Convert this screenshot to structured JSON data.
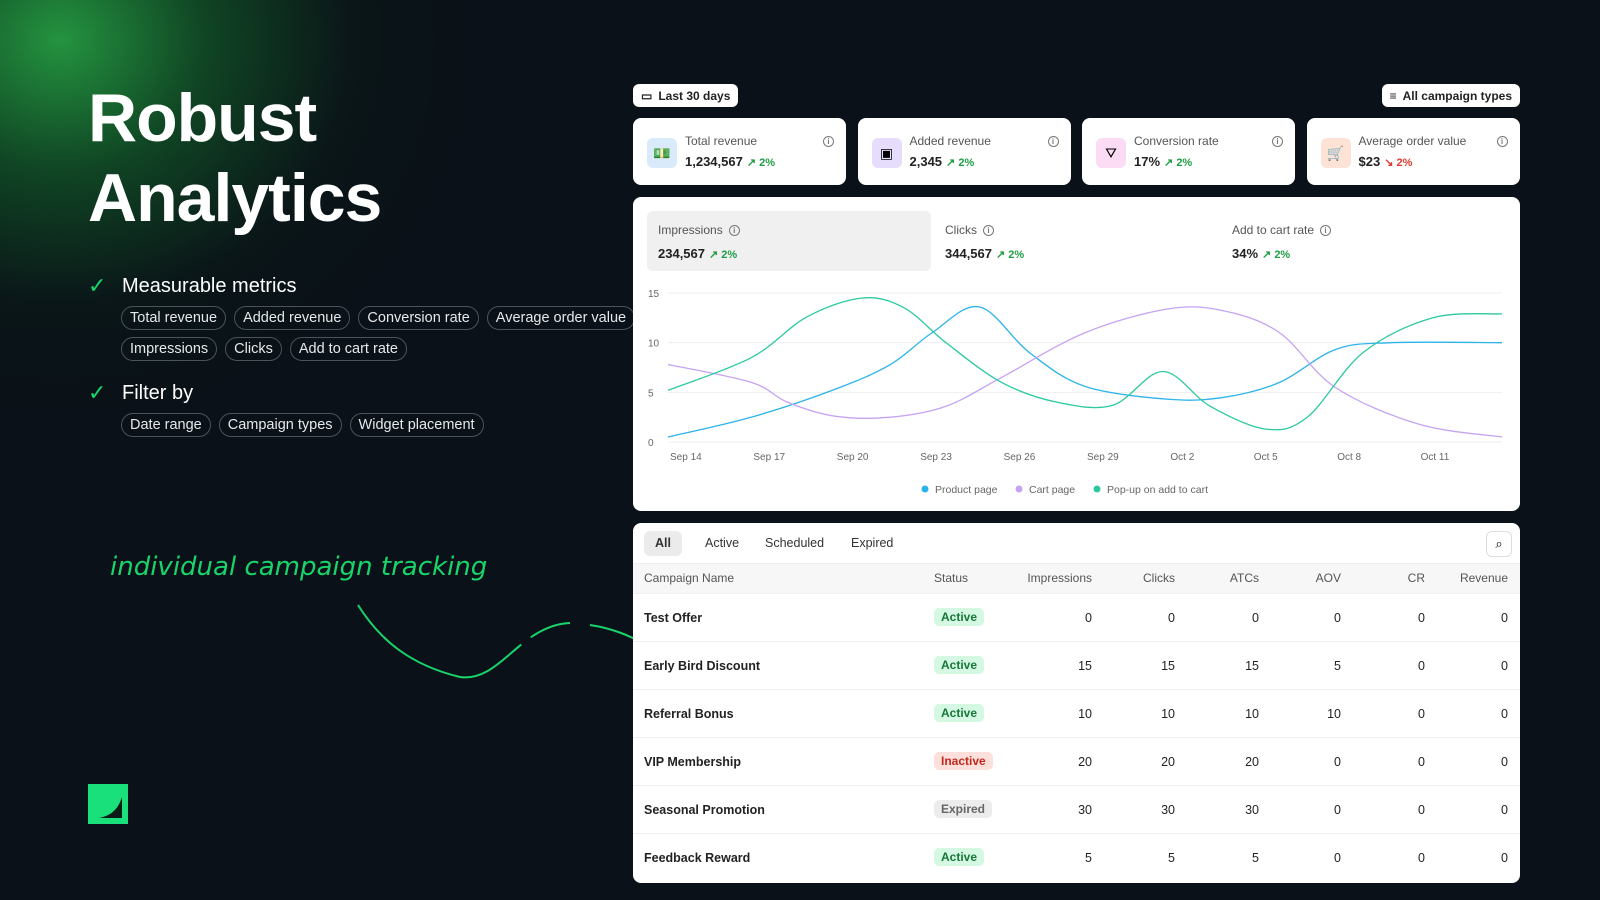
{
  "hero": {
    "title_line1": "Robust",
    "title_line2": "Analytics"
  },
  "features": [
    {
      "label": "Measurable metrics",
      "pills": [
        "Total revenue",
        "Added revenue",
        "Conversion rate",
        "Average order value",
        "Impressions",
        "Clicks",
        "Add to cart rate"
      ]
    },
    {
      "label": "Filter by",
      "pills": [
        "Date range",
        "Campaign types",
        "Widget placement"
      ]
    }
  ],
  "annotation": "individual campaign tracking",
  "toolbar": {
    "date_range": "Last 30 days",
    "campaign_filter": "All campaign types"
  },
  "kpis": [
    {
      "label": "Total revenue",
      "value": "1,234,567",
      "change": "2%",
      "dir": "up",
      "icon": "money-stack-icon",
      "bg": "#d9ebfb"
    },
    {
      "label": "Added revenue",
      "value": "2,345",
      "change": "2%",
      "dir": "up",
      "icon": "banknote-icon",
      "bg": "#e6dcfb"
    },
    {
      "label": "Conversion rate",
      "value": "17%",
      "change": "2%",
      "dir": "up",
      "icon": "funnel-dollar-icon",
      "bg": "#fbdcf4"
    },
    {
      "label": "Average order value",
      "value": "$23",
      "change": "2%",
      "dir": "down",
      "icon": "cart-check-icon",
      "bg": "#fde3d6"
    }
  ],
  "metrics": [
    {
      "label": "Impressions",
      "value": "234,567",
      "change": "2%"
    },
    {
      "label": "Clicks",
      "value": "344,567",
      "change": "2%"
    },
    {
      "label": "Add to cart rate",
      "value": "34%",
      "change": "2%"
    }
  ],
  "chart_data": {
    "type": "line",
    "ylim": [
      0,
      15
    ],
    "yticks": [
      0,
      5,
      10,
      15
    ],
    "xlim_days": [
      0,
      30
    ],
    "xticks": [
      {
        "day": 0,
        "label": "Sep 14"
      },
      {
        "day": 3,
        "label": "Sep 17"
      },
      {
        "day": 6,
        "label": "Sep 20"
      },
      {
        "day": 9,
        "label": "Sep 23"
      },
      {
        "day": 12,
        "label": "Sep 26"
      },
      {
        "day": 15,
        "label": "Sep 29"
      },
      {
        "day": 18,
        "label": "Oct 2"
      },
      {
        "day": 21,
        "label": "Oct 5"
      },
      {
        "day": 24,
        "label": "Oct 8"
      },
      {
        "day": 27,
        "label": "Oct 11"
      }
    ],
    "legend_position": "bottom",
    "series": [
      {
        "name": "Product page",
        "color": "#2bb3ea",
        "points": [
          [
            0,
            0.5
          ],
          [
            3,
            2.5
          ],
          [
            6,
            5.3
          ],
          [
            8,
            7.8
          ],
          [
            9.5,
            11
          ],
          [
            11.2,
            13.6
          ],
          [
            13,
            9
          ],
          [
            15,
            5.6
          ],
          [
            18,
            4.3
          ],
          [
            20,
            4.5
          ],
          [
            22,
            6
          ],
          [
            24,
            9.3
          ],
          [
            26,
            10
          ],
          [
            30,
            10
          ]
        ]
      },
      {
        "name": "Cart page",
        "color": "#c5a3f2",
        "points": [
          [
            0,
            7.8
          ],
          [
            3,
            6
          ],
          [
            4.3,
            4
          ],
          [
            6,
            2.6
          ],
          [
            8,
            2.5
          ],
          [
            10,
            3.6
          ],
          [
            12,
            6.5
          ],
          [
            15,
            11
          ],
          [
            18,
            13.4
          ],
          [
            20,
            13.2
          ],
          [
            22,
            11
          ],
          [
            24,
            5.5
          ],
          [
            27,
            1.8
          ],
          [
            30,
            0.5
          ]
        ]
      },
      {
        "name": "Pop-up on add to cart",
        "color": "#2cc9a0",
        "points": [
          [
            0,
            5.2
          ],
          [
            3,
            8.5
          ],
          [
            5,
            12.6
          ],
          [
            7,
            14.5
          ],
          [
            8.5,
            13.5
          ],
          [
            10,
            10
          ],
          [
            12,
            6
          ],
          [
            14,
            4
          ],
          [
            16,
            3.7
          ],
          [
            17.8,
            7.1
          ],
          [
            19.5,
            3.6
          ],
          [
            21.5,
            1.3
          ],
          [
            23,
            2.5
          ],
          [
            25,
            9
          ],
          [
            27.5,
            12.5
          ],
          [
            30,
            12.9
          ]
        ]
      }
    ]
  },
  "table": {
    "tabs": [
      "All",
      "Active",
      "Scheduled",
      "Expired"
    ],
    "columns": [
      "Campaign Name",
      "Status",
      "Impressions",
      "Clicks",
      "ATCs",
      "AOV",
      "CR",
      "Revenue"
    ],
    "rows": [
      {
        "name": "Test Offer",
        "status": "Active",
        "vals": [
          "0",
          "0",
          "0",
          "0",
          "0",
          "0"
        ]
      },
      {
        "name": "Early Bird Discount",
        "status": "Active",
        "vals": [
          "15",
          "15",
          "15",
          "5",
          "0",
          "0"
        ]
      },
      {
        "name": "Referral Bonus",
        "status": "Active",
        "vals": [
          "10",
          "10",
          "10",
          "10",
          "0",
          "0"
        ]
      },
      {
        "name": "VIP Membership",
        "status": "Inactive",
        "vals": [
          "20",
          "20",
          "20",
          "0",
          "0",
          "0"
        ]
      },
      {
        "name": "Seasonal Promotion",
        "status": "Expired",
        "vals": [
          "30",
          "30",
          "30",
          "0",
          "0",
          "0"
        ]
      },
      {
        "name": "Feedback Reward",
        "status": "Active",
        "vals": [
          "5",
          "5",
          "5",
          "0",
          "0",
          "0"
        ]
      }
    ]
  }
}
